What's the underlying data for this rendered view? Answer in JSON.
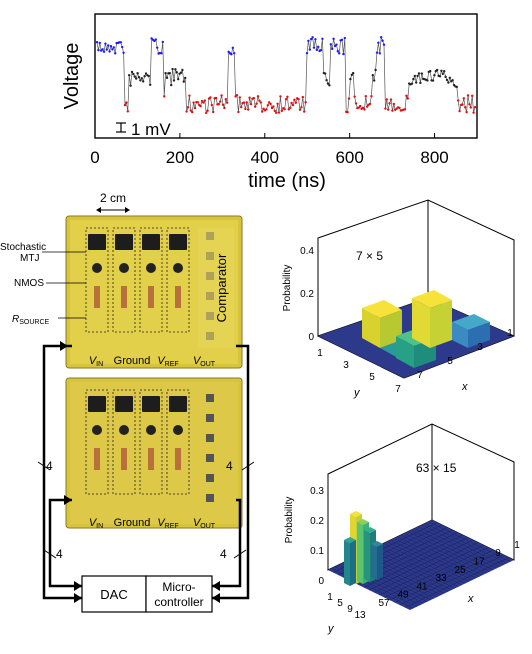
{
  "voltage_trace": {
    "ylabel": "Voltage",
    "xlabel": "time (ns)",
    "scale_bar": "1 mV",
    "x_ticks": [
      "0",
      "200",
      "400",
      "600",
      "800"
    ],
    "colors": {
      "high": "#1a1aff",
      "mid": "#222222",
      "low": "#e01010"
    }
  },
  "board": {
    "scale_label": "2 cm",
    "label_mtj": "Stochastic",
    "label_mtj2": "MTJ",
    "label_nmos": "NMOS",
    "label_rsource": "R",
    "label_rsource_sub": "SOURCE",
    "comparator": "Comparator",
    "terminals": [
      {
        "main": "V",
        "sub": "IN"
      },
      {
        "main": "Ground",
        "sub": ""
      },
      {
        "main": "V",
        "sub": "REF"
      },
      {
        "main": "V",
        "sub": "OUT"
      }
    ],
    "bus_count": "4",
    "dac": "DAC",
    "micro_1": "Micro-",
    "micro_2": "controller"
  },
  "histograms": [
    {
      "title": "7 × 5",
      "zlabel": "Probability",
      "z_ticks": [
        "0",
        "0.2",
        "0.4"
      ],
      "y_ticks": [
        "1",
        "3",
        "5",
        "7"
      ],
      "x_ticks": [
        "7",
        "5",
        "3",
        "1"
      ],
      "ylabel": "y",
      "xlabel": "x"
    },
    {
      "title": "63 × 15",
      "zlabel": "Probability",
      "z_ticks": [
        "0",
        "0.1",
        "0.2",
        "0.3"
      ],
      "y_ticks": [
        "1",
        "5",
        "9",
        "13"
      ],
      "x_ticks": [
        "57",
        "49",
        "41",
        "33",
        "25",
        "17",
        "9",
        "1"
      ],
      "ylabel": "y",
      "xlabel": "x"
    }
  ]
}
